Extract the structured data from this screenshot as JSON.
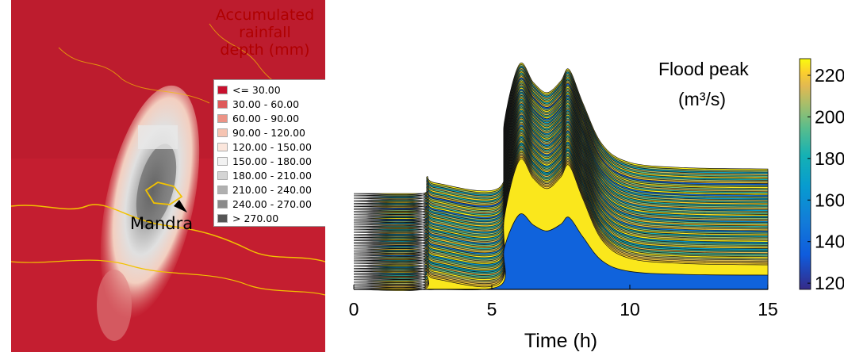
{
  "map": {
    "title_lines": [
      "Accumulated",
      "rainfall",
      "depth (mm)"
    ],
    "place_label": "Mandra",
    "legend": [
      {
        "label": "<= 30.00",
        "color": "#c8102e"
      },
      {
        "label": "30.00 - 60.00",
        "color": "#de5a5a"
      },
      {
        "label": "60.00 - 90.00",
        "color": "#ec9386"
      },
      {
        "label": "90.00 - 120.00",
        "color": "#f6c4b2"
      },
      {
        "label": "120.00 - 150.00",
        "color": "#fbe6dc"
      },
      {
        "label": "150.00 - 180.00",
        "color": "#f2f2f2"
      },
      {
        "label": "180.00 - 210.00",
        "color": "#d4d4d4"
      },
      {
        "label": "210.00 - 240.00",
        "color": "#b0b0b0"
      },
      {
        "label": "240.00 - 270.00",
        "color": "#8a8a8a"
      },
      {
        "label": "> 270.00",
        "color": "#555555"
      }
    ],
    "colors": {
      "background": "#c41e30",
      "boundary": "#f2c200"
    }
  },
  "chart_data": {
    "type": "area",
    "description": "Stacked waterfall of simulated flood hydrographs, colored by flood peak",
    "xlabel": "Time (h)",
    "xlim": [
      0,
      15
    ],
    "xticks": [
      0,
      5,
      10,
      15
    ],
    "hydrograph_shape": {
      "t": [
        0,
        2.5,
        2.65,
        3.0,
        5.3,
        5.45,
        6.0,
        6.5,
        7.0,
        7.5,
        7.8,
        8.3,
        9.0,
        10.0,
        12.0,
        15.0
      ],
      "relative_flow": [
        0.0,
        0.0,
        0.13,
        0.08,
        0.05,
        0.55,
        1.0,
        0.86,
        0.78,
        0.87,
        0.96,
        0.7,
        0.38,
        0.24,
        0.2,
        0.19
      ]
    },
    "colorbar": {
      "label_line1": "Flood peak",
      "label_line2": "(m³/s)",
      "ticks": [
        120,
        140,
        160,
        180,
        200,
        220
      ],
      "range": [
        117,
        228
      ]
    },
    "ensemble_peaks": [
      225,
      222,
      218,
      213,
      208,
      225,
      200,
      190,
      215,
      185,
      172,
      223,
      205,
      195,
      165,
      226,
      210,
      203,
      180,
      224,
      198,
      152,
      219,
      207,
      186,
      221,
      196,
      160,
      214,
      202,
      176,
      224,
      193,
      205,
      168,
      217,
      200,
      183,
      222,
      190,
      210,
      170,
      203,
      145,
      226,
      188,
      213,
      199,
      225,
      201,
      138,
      220,
      206,
      182,
      223,
      194,
      211,
      174,
      204,
      226
    ]
  }
}
